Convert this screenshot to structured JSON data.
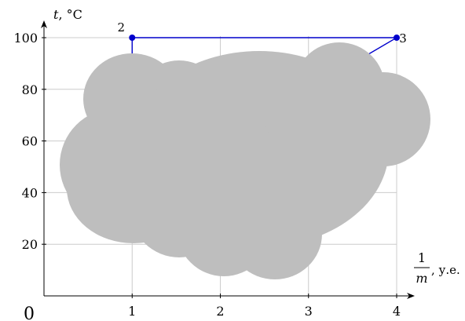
{
  "chart_data": {
    "type": "line",
    "title": "",
    "xlim": [
      0,
      4
    ],
    "ylim": [
      0,
      100
    ],
    "grid": true,
    "x_ticks": [
      1,
      2,
      3,
      4
    ],
    "y_ticks": [
      20,
      40,
      60,
      80,
      100
    ],
    "x_tick_labels": [
      "1",
      "2",
      "3",
      "4"
    ],
    "y_tick_labels": [
      "20",
      "40",
      "60",
      "80",
      "100"
    ],
    "origin_label": "0",
    "ylabel": {
      "var": "t",
      "unit": ", °C"
    },
    "xlabel": {
      "numerator": "1",
      "denominator": "m",
      "unit": ", у.е."
    },
    "series": [
      {
        "color": "#0000cc",
        "points": [
          {
            "x": 1,
            "y": 70,
            "label": ""
          },
          {
            "x": 1,
            "y": 100,
            "label": "2"
          },
          {
            "x": 4,
            "y": 100,
            "label": "3"
          },
          {
            "x": 3.5,
            "y": 90,
            "label": ""
          }
        ],
        "marked_points": [
          1,
          2
        ]
      }
    ],
    "occluder": {
      "color": "#bebebe",
      "shape": "cloud"
    }
  }
}
